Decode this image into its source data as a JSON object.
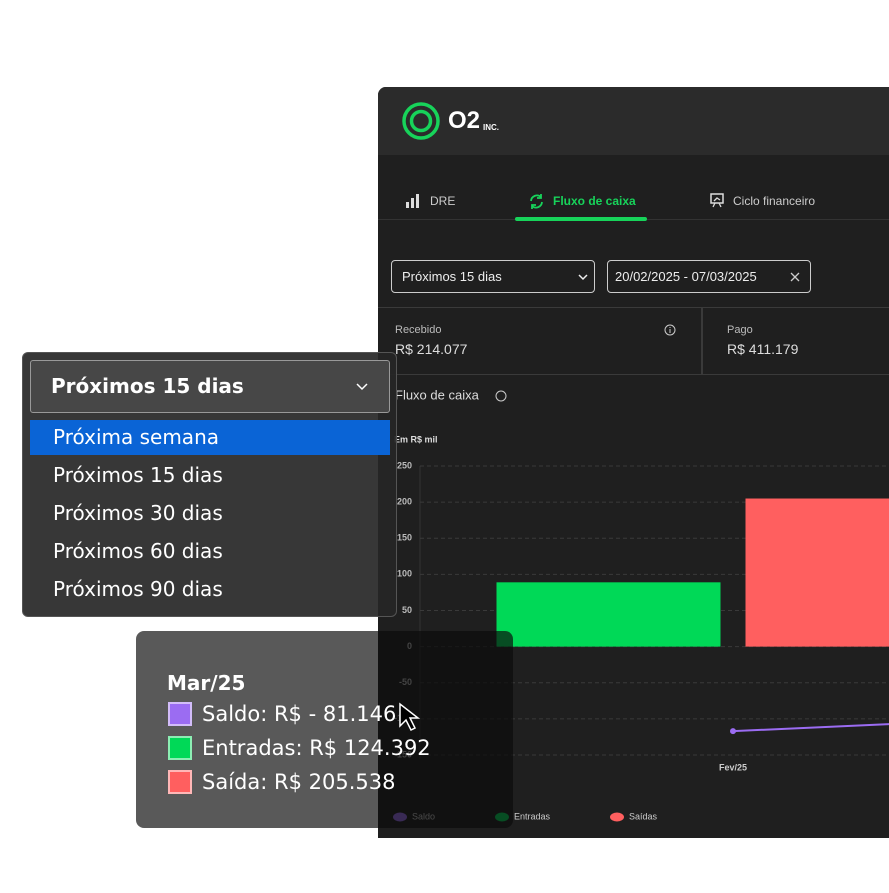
{
  "brand": {
    "name": "O2",
    "suffix": "INC."
  },
  "tabs": [
    "DRE",
    "Fluxo de caixa",
    "Ciclo financeiro"
  ],
  "filters": {
    "period": "Próximos 15 dias",
    "range": "20/02/2025 - 07/03/2025"
  },
  "cards": [
    {
      "label": "Recebido",
      "value": "R$ 214.077"
    },
    {
      "label": "Pago",
      "value": "R$ 411.179"
    }
  ],
  "dropdown": {
    "selected": "Próximos 15 dias",
    "options": [
      "Próxima semana",
      "Próximos 15 dias",
      "Próximos 30 dias",
      "Próximos 60 dias",
      "Próximos 90 dias"
    ]
  },
  "tooltip": {
    "items": [
      "Saldo: R$ - 81.146",
      "Entradas: R$ 124.392",
      "Saída: R$ 205.538"
    ]
  },
  "chart_data": {
    "type": "bar",
    "title": "Fluxo de caixa",
    "y_label": "Em R$ mil",
    "categories": [
      "Fev/25",
      "Mar/25"
    ],
    "series": [
      {
        "name": "Saldo",
        "color": "#9b6cf2",
        "type": "line",
        "values": [
          -117,
          -81.146
        ]
      },
      {
        "name": "Entradas",
        "color": "#00d957",
        "values": [
          89,
          124.392
        ]
      },
      {
        "name": "Saídas",
        "color": "#ff5f5f",
        "values": [
          205,
          205.538
        ]
      }
    ],
    "ylim": [
      -155,
      250
    ],
    "yticks": [
      250,
      200,
      150,
      100,
      50,
      0,
      -50,
      -100,
      -150
    ],
    "grid": true
  }
}
